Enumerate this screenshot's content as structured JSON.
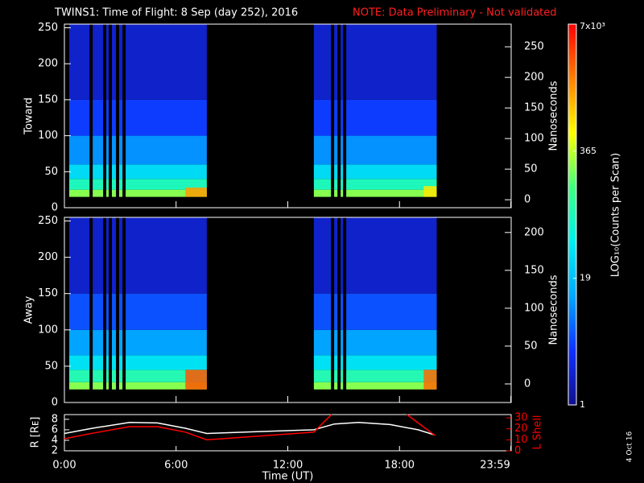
{
  "chart_data": [
    {
      "type": "spectrogram",
      "title": "TWINS1: Time of Flight:  8 Sep (day 252), 2016",
      "note": "NOTE: Data Preliminary - Not validated",
      "ylabel": "Toward",
      "y2label": "Nanoseconds",
      "xlim": [
        0,
        24
      ],
      "ylim": [
        0,
        255
      ],
      "yticks": [
        0,
        50,
        100,
        150,
        200,
        250
      ],
      "y2lim": [
        -13,
        287
      ],
      "y2ticks": [
        0,
        50,
        100,
        150,
        200,
        250
      ],
      "segments": [
        [
          0.26,
          7.65
        ],
        [
          13.4,
          20.0
        ]
      ],
      "gaps": [
        [
          1.35,
          1.52
        ],
        [
          2.08,
          2.25
        ],
        [
          2.38,
          2.55
        ],
        [
          2.77,
          2.94
        ],
        [
          3.12,
          3.29
        ],
        [
          14.32,
          14.49
        ],
        [
          14.67,
          14.84
        ],
        [
          14.97,
          15.14
        ]
      ],
      "profile_y": [
        15,
        25,
        40,
        60,
        100,
        150,
        255
      ],
      "profile_values": [
        250,
        80,
        30,
        10,
        4,
        2
      ],
      "hotspots": [
        {
          "x": [
            6.5,
            7.65
          ],
          "y": [
            15,
            28
          ],
          "value": 1500
        },
        {
          "x": [
            19.3,
            20.0
          ],
          "y": [
            15,
            30
          ],
          "value": 700
        }
      ]
    },
    {
      "type": "spectrogram",
      "ylabel": "Away",
      "y2label": "Nanoseconds",
      "xlim": [
        0,
        24
      ],
      "ylim": [
        0,
        255
      ],
      "yticks": [
        0,
        50,
        100,
        150,
        200,
        250
      ],
      "y2lim": [
        -24.5,
        220
      ],
      "y2ticks": [
        0,
        50,
        100,
        150,
        200
      ],
      "segments": [
        [
          0.26,
          7.65
        ],
        [
          13.4,
          20.0
        ]
      ],
      "gaps": [
        [
          1.35,
          1.52
        ],
        [
          2.08,
          2.25
        ],
        [
          2.38,
          2.55
        ],
        [
          2.77,
          2.94
        ],
        [
          3.12,
          3.29
        ],
        [
          14.32,
          14.49
        ],
        [
          14.67,
          14.84
        ],
        [
          14.97,
          15.14
        ]
      ],
      "profile_y": [
        18,
        28,
        45,
        65,
        100,
        150,
        255
      ],
      "profile_values": [
        250,
        90,
        35,
        12,
        5,
        2
      ],
      "hotspots": [
        {
          "x": [
            6.5,
            7.65
          ],
          "y": [
            18,
            45
          ],
          "value": 3000
        },
        {
          "x": [
            19.3,
            20.0
          ],
          "y": [
            18,
            45
          ],
          "value": 2500
        }
      ]
    },
    {
      "type": "colorbar",
      "label": "LOG₁₀(Counts per Scan)",
      "clim": [
        1,
        7000
      ],
      "log": true,
      "ticks": [
        {
          "value": 7000,
          "label": "7x10³"
        },
        365,
        19,
        1
      ],
      "colors": [
        "#10108a",
        "#1030ff",
        "#00a8ff",
        "#00f0f0",
        "#40ff80",
        "#ffff00",
        "#ff8000",
        "#ff0000"
      ]
    },
    {
      "type": "line",
      "ylabel": "R [Rᴇ]",
      "y2label": "L Shell",
      "xlabel": "Time (UT)",
      "footnote": "4 Oct 16",
      "xlim": [
        0,
        24
      ],
      "xticks": [
        {
          "value": 0,
          "label": "0:00"
        },
        {
          "value": 6,
          "label": "6:00"
        },
        {
          "value": 12,
          "label": "12:00"
        },
        {
          "value": 18,
          "label": "18:00"
        },
        {
          "value": 23.98,
          "label": "23:59"
        }
      ],
      "ylim": [
        2,
        8.9
      ],
      "yticks": [
        2,
        4,
        6,
        8
      ],
      "y2lim": [
        0,
        33
      ],
      "y2ticks": [
        0,
        10,
        20,
        30
      ],
      "y2color": "#ff0000",
      "series": [
        {
          "color": "#ffffff",
          "x": [
            0,
            1.5,
            3.5,
            5,
            6.5,
            7.65,
            10,
            13.4,
            14.5,
            15.8,
            17.5,
            19,
            19.9
          ],
          "values": [
            5.3,
            6.3,
            7.4,
            7.3,
            6.3,
            5.3,
            5.6,
            6.0,
            7.1,
            7.4,
            7.0,
            6.0,
            5.0
          ]
        },
        {
          "color": "#ff0000",
          "axis": "y2",
          "x": [
            0,
            1.5,
            3.5,
            5,
            6.5,
            7.65,
            10.5,
            13.4,
            14.35,
            16,
            18.4,
            19.9
          ],
          "values": [
            11,
            16,
            22,
            22,
            17,
            10,
            13.5,
            17,
            33,
            null,
            33,
            14
          ]
        }
      ]
    }
  ]
}
